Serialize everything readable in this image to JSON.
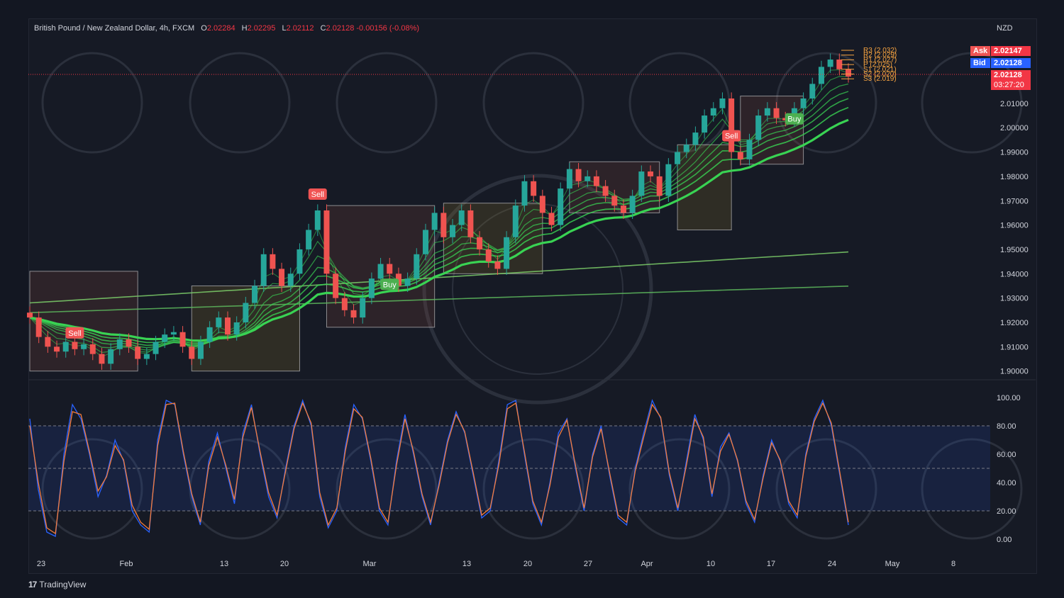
{
  "header": {
    "symbol": "British Pound / New Zealand Dollar, 4h, FXCM",
    "open_label": "O",
    "open": "2.02284",
    "high_label": "H",
    "high": "2.02295",
    "low_label": "L",
    "low": "2.02112",
    "close_label": "C",
    "close": "2.02128",
    "change": "-0.00156 (-0.08%)"
  },
  "currency": "NZD",
  "quote": {
    "ask_label": "Ask",
    "ask": "2.02147",
    "bid_label": "Bid",
    "bid": "2.02128",
    "last": "2.02128",
    "countdown": "03:27:20"
  },
  "pivots": [
    "R3 (2.032)",
    "R2 (2.029)",
    "R1 (2.027)",
    "P (2.025)",
    "S1 (2.021)",
    "S2 (2.020)",
    "S3 (2.019)"
  ],
  "brand": "TradingView",
  "colors": {
    "background": "#131722",
    "up": "#26a69a",
    "down": "#ef5350",
    "ema_bull": "#39d353",
    "ema_bear": "#e03c3c",
    "sell_tag": "#f05454",
    "buy_tag": "#4caf50",
    "stoch_k": "#2962ff",
    "stoch_d": "#f57c3a",
    "pivot": "#f7a440"
  },
  "chart_data": [
    {
      "type": "line",
      "title": "British Pound / New Zealand Dollar, 4h, FXCM",
      "x_tick_labels": [
        "23",
        "Feb",
        "13",
        "20",
        "Mar",
        "13",
        "20",
        "27",
        "Apr",
        "10",
        "17",
        "24",
        "May",
        "8"
      ],
      "y_tick_labels": [
        "2.01000",
        "2.00000",
        "1.99000",
        "1.98000",
        "1.97000",
        "1.96000",
        "1.95000",
        "1.94000",
        "1.93000",
        "1.92000",
        "1.91000",
        "1.90000"
      ],
      "ylim": [
        1.897,
        2.035
      ],
      "series": [
        {
          "values": [
            1.922,
            1.914,
            1.91,
            1.908,
            1.912,
            1.909,
            1.911,
            1.907,
            1.903,
            1.909,
            1.913,
            1.91,
            1.905,
            1.907,
            1.912,
            1.915,
            1.916,
            1.91,
            1.905,
            1.912,
            1.918,
            1.922,
            1.915,
            1.92,
            1.928,
            1.935,
            1.948,
            1.942,
            1.935,
            1.94,
            1.95,
            1.958,
            1.966,
            1.94,
            1.93,
            1.925,
            1.922,
            1.93,
            1.938,
            1.944,
            1.94,
            1.935,
            1.938,
            1.948,
            1.958,
            1.965,
            1.955,
            1.96,
            1.966,
            1.955,
            1.95,
            1.945,
            1.942,
            1.955,
            1.968,
            1.978,
            1.972,
            1.965,
            1.96,
            1.975,
            1.983,
            1.978,
            1.98,
            1.976,
            1.972,
            1.968,
            1.965,
            1.972,
            1.982,
            1.98,
            1.972,
            1.985,
            1.99,
            1.993,
            1.998,
            2.005,
            2.008,
            2.012,
            1.99,
            1.987,
            1.995,
            2.005,
            2.008,
            2.004,
            2.003,
            2.008,
            2.012,
            2.018,
            2.025,
            2.028,
            2.024,
            2.021
          ]
        }
      ],
      "signals": [
        {
          "label": "Sell",
          "x_index": 5
        },
        {
          "label": "Sell",
          "x_index": 32
        },
        {
          "label": "Buy",
          "x_index": 40
        },
        {
          "label": "Sell",
          "x_index": 78
        },
        {
          "label": "Buy",
          "x_index": 85
        }
      ],
      "grid": false
    },
    {
      "type": "line",
      "title": "",
      "y_tick_labels": [
        "100.00",
        "80.00",
        "60.00",
        "40.00",
        "20.00",
        "0.00"
      ],
      "ylim": [
        0,
        100
      ],
      "bands": [
        20,
        80
      ],
      "series": [
        {
          "name": "",
          "values": [
            85,
            35,
            5,
            2,
            60,
            95,
            85,
            60,
            30,
            45,
            70,
            55,
            20,
            10,
            5,
            70,
            98,
            95,
            60,
            30,
            10,
            55,
            75,
            50,
            25,
            75,
            95,
            60,
            30,
            15,
            50,
            80,
            98,
            80,
            30,
            8,
            20,
            65,
            95,
            85,
            55,
            20,
            10,
            55,
            88,
            60,
            30,
            10,
            40,
            70,
            90,
            75,
            45,
            15,
            20,
            55,
            95,
            98,
            60,
            25,
            10,
            40,
            75,
            85,
            50,
            20,
            60,
            80,
            45,
            15,
            10,
            50,
            75,
            98,
            85,
            45,
            20,
            55,
            88,
            70,
            30,
            65,
            75,
            55,
            25,
            12,
            45,
            70,
            55,
            25,
            15,
            60,
            85,
            98,
            80,
            45,
            10
          ]
        },
        {
          "name": "",
          "values": [
            80,
            40,
            8,
            4,
            55,
            90,
            88,
            62,
            34,
            44,
            66,
            56,
            24,
            12,
            7,
            66,
            95,
            96,
            62,
            32,
            12,
            52,
            72,
            52,
            28,
            72,
            93,
            62,
            33,
            17,
            48,
            78,
            96,
            82,
            33,
            10,
            22,
            62,
            92,
            86,
            57,
            22,
            12,
            52,
            85,
            62,
            32,
            12,
            38,
            68,
            88,
            76,
            47,
            17,
            22,
            52,
            92,
            96,
            62,
            27,
            12,
            38,
            72,
            84,
            52,
            22,
            58,
            78,
            47,
            17,
            12,
            48,
            72,
            95,
            86,
            47,
            22,
            52,
            85,
            72,
            32,
            62,
            74,
            56,
            27,
            14,
            43,
            68,
            56,
            27,
            17,
            58,
            83,
            96,
            82,
            47,
            12
          ]
        }
      ]
    }
  ]
}
